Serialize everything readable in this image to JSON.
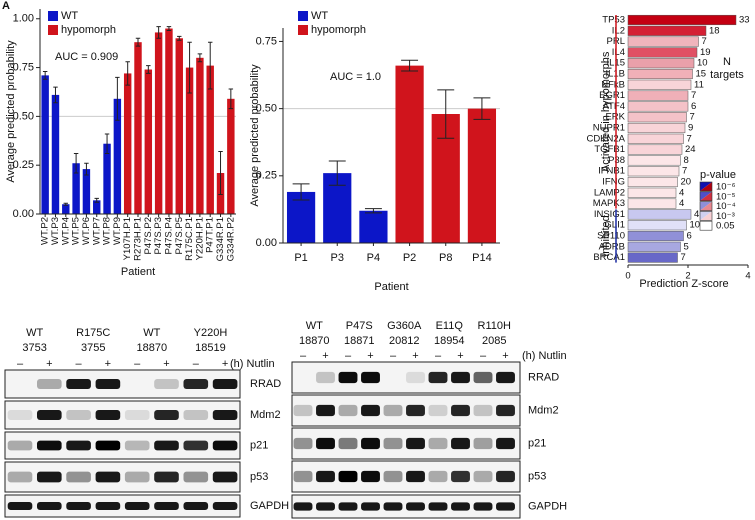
{
  "chart_data": [
    {
      "type": "bar",
      "panel_label": "A",
      "ylabel": "Average predicted probability",
      "xlabel": "Patient",
      "annotation": "AUC = 0.909",
      "categories": [
        "WT.P2",
        "WT.P3",
        "WT.P4",
        "WT.P5",
        "WT.P6",
        "WT.P7",
        "WT.P8",
        "WT.P9",
        "Y107H.P1",
        "R273H.P1",
        "P47S.P2",
        "P47S.P3",
        "P47S.P4",
        "P47S.P5",
        "R175C.P1",
        "Y220H.P1",
        "P47T.P1",
        "G334R.P1",
        "G334R.P2"
      ],
      "series": [
        {
          "name": "WT",
          "color": "#0c16c8",
          "values": [
            0.71,
            0.61,
            0.05,
            0.26,
            0.23,
            0.07,
            0.36,
            0.59,
            null,
            null,
            null,
            null,
            null,
            null,
            null,
            null,
            null,
            null,
            null
          ],
          "errors": [
            0.02,
            0.04,
            0.005,
            0.05,
            0.03,
            0.01,
            0.05,
            0.11,
            null,
            null,
            null,
            null,
            null,
            null,
            null,
            null,
            null,
            null,
            null
          ]
        },
        {
          "name": "hypomorph",
          "color": "#d0141c",
          "values": [
            null,
            null,
            null,
            null,
            null,
            null,
            null,
            null,
            0.72,
            0.88,
            0.74,
            0.93,
            0.95,
            0.9,
            0.75,
            0.8,
            0.76,
            0.21,
            0.59
          ],
          "errors": [
            null,
            null,
            null,
            null,
            null,
            null,
            null,
            null,
            0.06,
            0.02,
            0.02,
            0.03,
            0.01,
            0.01,
            0.13,
            0.02,
            0.12,
            0.11,
            0.05
          ]
        }
      ],
      "ylim": [
        0,
        1.05
      ],
      "yticks": [
        {
          "value": 0,
          "label": "0.00"
        },
        {
          "value": 0.25,
          "label": "0.25"
        },
        {
          "value": 0.5,
          "label": "0.50"
        },
        {
          "value": 0.75,
          "label": "0.75"
        },
        {
          "value": 1,
          "label": "1.00"
        }
      ],
      "reference_line": 0.5
    },
    {
      "type": "bar",
      "ylabel": "Average predicted probability",
      "xlabel": "Patient",
      "annotation": "AUC = 1.0",
      "categories": [
        "P1",
        "P3",
        "P4",
        "P2",
        "P8",
        "P14"
      ],
      "series": [
        {
          "name": "WT",
          "color": "#0c16c8",
          "values": [
            0.19,
            0.26,
            0.12,
            null,
            null,
            null
          ],
          "errors": [
            0.03,
            0.045,
            0.008,
            null,
            null,
            null
          ]
        },
        {
          "name": "hypomorph",
          "color": "#d0141c",
          "values": [
            null,
            null,
            null,
            0.66,
            0.48,
            0.5
          ],
          "errors": [
            null,
            null,
            null,
            0.02,
            0.09,
            0.04
          ]
        }
      ],
      "ylim": [
        0,
        0.8
      ],
      "yticks": [
        {
          "value": 0,
          "label": "0.00"
        },
        {
          "value": 0.25,
          "label": "0.25"
        },
        {
          "value": 0.5,
          "label": "0.50"
        },
        {
          "value": 0.75,
          "label": "0.75"
        }
      ],
      "reference_line": 0.5
    },
    {
      "type": "barh",
      "xlabel": "Prediction Z-score",
      "categories": [
        "TP53",
        "IL2",
        "PRL",
        "IL4",
        "IL15",
        "IL1B",
        "NFkB",
        "EGR1",
        "ATF4",
        "ERK",
        "NUPR1",
        "CDKN2A",
        "TGFB1",
        "P38",
        "IFNB1",
        "IFNG",
        "LAMP2",
        "MAPK3",
        "INSIG1",
        "GLI1",
        "SP110",
        "ADRB",
        "BRCA1"
      ],
      "values": [
        3.6,
        2.6,
        2.35,
        2.3,
        2.2,
        2.15,
        2.1,
        2.0,
        2.0,
        1.95,
        1.9,
        1.85,
        1.8,
        1.75,
        1.7,
        1.65,
        1.6,
        1.6,
        2.1,
        1.95,
        1.85,
        1.75,
        1.65
      ],
      "colors": [
        "#c40012",
        "#d42034",
        "#f0b4bc",
        "#e05064",
        "#eaa0aa",
        "#f0b0b8",
        "#f8d4d8",
        "#f0b0b8",
        "#f4c2c8",
        "#f4c2c8",
        "#f8d4d8",
        "#f8d4d8",
        "#f8d4d8",
        "#fce6e8",
        "#fce6e8",
        "#fce6e8",
        "#fce6e8",
        "#fce6e8",
        "#c8c8f0",
        "#e0e0f8",
        "#9090d8",
        "#a8a8e0",
        "#6868c8"
      ],
      "n_targets": [
        33,
        18,
        7,
        19,
        10,
        15,
        11,
        7,
        6,
        7,
        9,
        7,
        24,
        8,
        7,
        20,
        4,
        4,
        4,
        10,
        6,
        5,
        7
      ],
      "n_targets_title": [
        "N",
        "targets"
      ],
      "groups": [
        {
          "label": "Activated in hypomorphs",
          "color": "#d0141c"
        },
        {
          "label": "Inhibited",
          "color": "#1a2aa0"
        }
      ],
      "legend": {
        "title": "p-value",
        "labels": [
          "10⁻⁶",
          "10⁻⁵",
          "10⁻⁴",
          "10⁻³",
          "0.05"
        ],
        "colors_inhibited": [
          "#1010b0",
          "#5050c8",
          "#9090d8",
          "#d0d0f0",
          "#ffffff"
        ],
        "colors_activated": [
          "#b00010",
          "#d03040",
          "#e88890",
          "#f8d0d4",
          "#ffffff"
        ]
      },
      "xlim": [
        0,
        4
      ],
      "xticks": [
        0,
        2,
        4
      ]
    }
  ],
  "blots": [
    {
      "samples": [
        [
          "WT",
          "3753"
        ],
        [
          "R175C",
          "3755"
        ],
        [
          "WT",
          "18870"
        ],
        [
          "Y220H",
          "18519"
        ]
      ],
      "treatments": [
        "–",
        "+",
        "–",
        "+",
        "–",
        "+",
        "–",
        "+"
      ],
      "treatment_label": "(h) Nutlin",
      "rows": [
        "RRAD",
        "Mdm2",
        "p21",
        "p53",
        "GAPDH"
      ]
    },
    {
      "samples": [
        [
          "WT",
          "18870"
        ],
        [
          "P47S",
          "18871"
        ],
        [
          "G360A",
          "20812"
        ],
        [
          "E11Q",
          "18954"
        ],
        [
          "R110H",
          "2085"
        ]
      ],
      "treatments": [
        "–",
        "+",
        "–",
        "+",
        "–",
        "+",
        "–",
        "+",
        "–",
        "+"
      ],
      "treatment_label": "(h) Nutlin",
      "rows": [
        "RRAD",
        "Mdm2",
        "p21",
        "p53",
        "GAPDH"
      ]
    }
  ]
}
